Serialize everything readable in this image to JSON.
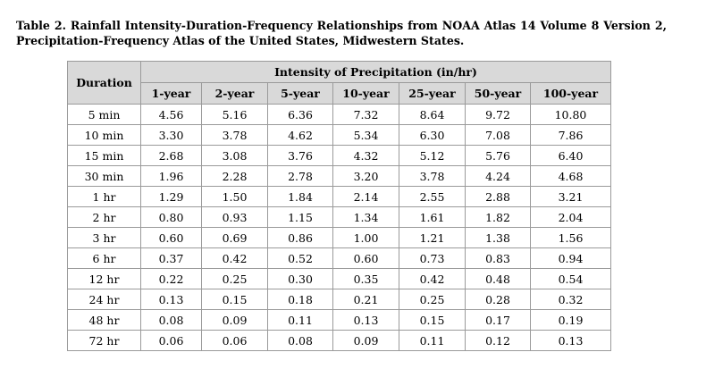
{
  "caption": {
    "line1": "Table 2. Rainfall Intensity-Duration-Frequency Relationships from NOAA Atlas 14 Volume 8 Version 2,",
    "line2": "Precipitation-Frequency Atlas of the United States, Midwestern States."
  },
  "table": {
    "duration_header": "Duration",
    "group_header": "Intensity of Precipitation (in/hr)",
    "columns": [
      "1-year",
      "2-year",
      "5-year",
      "10-year",
      "25-year",
      "50-year",
      "100-year"
    ],
    "rows": [
      {
        "duration": "5 min",
        "values": [
          "4.56",
          "5.16",
          "6.36",
          "7.32",
          "8.64",
          "9.72",
          "10.80"
        ]
      },
      {
        "duration": "10 min",
        "values": [
          "3.30",
          "3.78",
          "4.62",
          "5.34",
          "6.30",
          "7.08",
          "7.86"
        ]
      },
      {
        "duration": "15 min",
        "values": [
          "2.68",
          "3.08",
          "3.76",
          "4.32",
          "5.12",
          "5.76",
          "6.40"
        ]
      },
      {
        "duration": "30 min",
        "values": [
          "1.96",
          "2.28",
          "2.78",
          "3.20",
          "3.78",
          "4.24",
          "4.68"
        ]
      },
      {
        "duration": "1 hr",
        "values": [
          "1.29",
          "1.50",
          "1.84",
          "2.14",
          "2.55",
          "2.88",
          "3.21"
        ]
      },
      {
        "duration": "2 hr",
        "values": [
          "0.80",
          "0.93",
          "1.15",
          "1.34",
          "1.61",
          "1.82",
          "2.04"
        ]
      },
      {
        "duration": "3 hr",
        "values": [
          "0.60",
          "0.69",
          "0.86",
          "1.00",
          "1.21",
          "1.38",
          "1.56"
        ]
      },
      {
        "duration": "6 hr",
        "values": [
          "0.37",
          "0.42",
          "0.52",
          "0.60",
          "0.73",
          "0.83",
          "0.94"
        ]
      },
      {
        "duration": "12 hr",
        "values": [
          "0.22",
          "0.25",
          "0.30",
          "0.35",
          "0.42",
          "0.48",
          "0.54"
        ]
      },
      {
        "duration": "24 hr",
        "values": [
          "0.13",
          "0.15",
          "0.18",
          "0.21",
          "0.25",
          "0.28",
          "0.32"
        ]
      },
      {
        "duration": "48 hr",
        "values": [
          "0.08",
          "0.09",
          "0.11",
          "0.13",
          "0.15",
          "0.17",
          "0.19"
        ]
      },
      {
        "duration": "72 hr",
        "values": [
          "0.06",
          "0.06",
          "0.08",
          "0.09",
          "0.11",
          "0.12",
          "0.13"
        ]
      }
    ]
  }
}
